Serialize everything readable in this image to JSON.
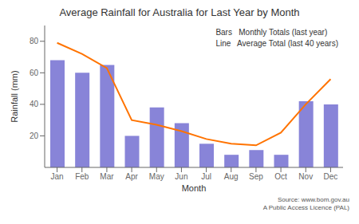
{
  "chart_data": {
    "type": "bar",
    "title": "Average Rainfall for Australia for Last Year by Month",
    "xlabel": "Month",
    "ylabel": "Rainfall (mm)",
    "categories": [
      "Jan",
      "Feb",
      "Mar",
      "Apr",
      "May",
      "Jun",
      "Jul",
      "Aug",
      "Sep",
      "Oct",
      "Nov",
      "Dec"
    ],
    "series": [
      {
        "name": "Bars   Monthly Totals (last year)",
        "type": "bar",
        "values": [
          68,
          60,
          65,
          20,
          38,
          28,
          15,
          8,
          11,
          8,
          42,
          40
        ]
      },
      {
        "name": "Line   Average Total (last 40 years)",
        "type": "line",
        "values": [
          79,
          72,
          63,
          30,
          27,
          23,
          18,
          15,
          14,
          22,
          40,
          56
        ]
      }
    ],
    "ylim": [
      0,
      90
    ],
    "yticks": [
      20,
      40,
      60,
      80
    ],
    "grid": false,
    "legend": "upper right",
    "annotations": [
      "Source: www.bom.gov.au\nA Public Access Licence (PAL)"
    ]
  }
}
